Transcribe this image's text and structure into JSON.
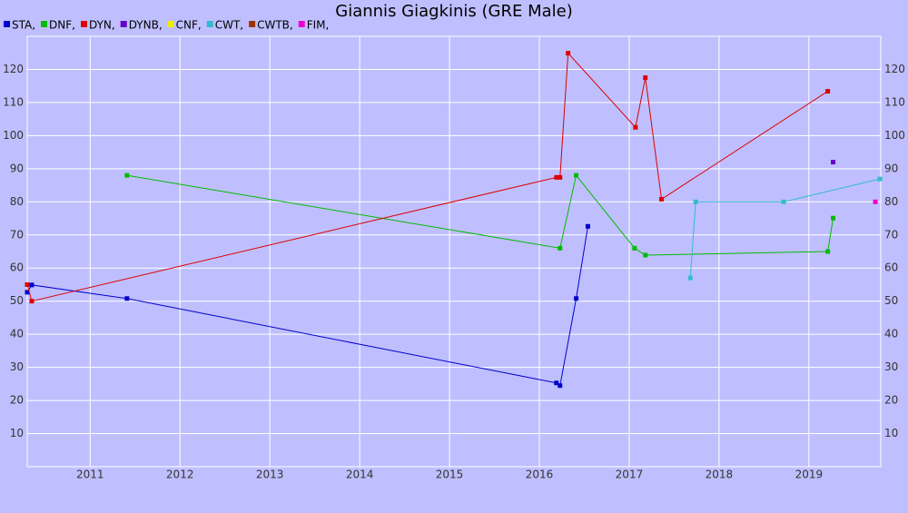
{
  "chart_data": {
    "type": "line",
    "title": "Giannis Giagkinis (GRE Male)",
    "xlim": [
      2010.3,
      2019.8
    ],
    "xticks": [
      2011,
      2012,
      2013,
      2014,
      2015,
      2016,
      2017,
      2018,
      2019
    ],
    "ylim": [
      0,
      130
    ],
    "yticks": [
      10,
      20,
      30,
      40,
      50,
      60,
      70,
      80,
      90,
      100,
      110,
      120
    ],
    "grid": true,
    "legend": "top-left",
    "series": [
      {
        "name": "STA,",
        "color": "#0000cc",
        "x": [
          2010.3,
          2010.35,
          2011.41,
          2016.19,
          2016.23,
          2016.41,
          2016.54
        ],
        "values": [
          52.7,
          54.9,
          50.8,
          25.3,
          24.5,
          50.8,
          72.6
        ]
      },
      {
        "name": "DNF,",
        "color": "#00bb00",
        "x": [
          2011.41,
          2016.23,
          2016.41,
          2017.06,
          2017.18,
          2019.21,
          2019.27
        ],
        "values": [
          88,
          66,
          88,
          66,
          63.9,
          65,
          75.1
        ]
      },
      {
        "name": "DYN,",
        "color": "#dd0000",
        "x": [
          2010.3,
          2010.35,
          2016.19,
          2016.23,
          2016.32,
          2017.07,
          2017.18,
          2017.36,
          2019.21
        ],
        "values": [
          55,
          50,
          87.4,
          87.4,
          124.9,
          102.5,
          117.5,
          80.8,
          113.4
        ]
      },
      {
        "name": "DYNB,",
        "color": "#6600cc",
        "x": [
          2019.27
        ],
        "values": [
          92
        ]
      },
      {
        "name": "CNF,",
        "color": "#eeee00",
        "x": [],
        "values": []
      },
      {
        "name": "CWT,",
        "color": "#33bbcc",
        "x": [
          2017.68,
          2017.74,
          2018.72,
          2019.79
        ],
        "values": [
          57,
          80,
          80,
          86.9
        ]
      },
      {
        "name": "CWTB,",
        "color": "#993300",
        "x": [],
        "values": []
      },
      {
        "name": "FIM,",
        "color": "#ee00cc",
        "x": [
          2019.74
        ],
        "values": [
          80
        ]
      }
    ]
  }
}
